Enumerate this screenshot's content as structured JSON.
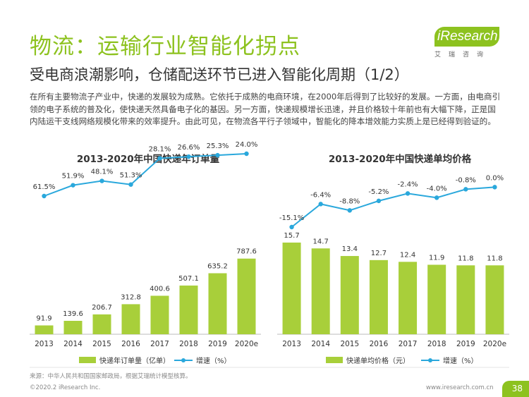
{
  "title": "物流：运输行业智能化拐点",
  "subtitle": "受电商浪潮影响，仓储配送环节已进入智能化周期（1/2）",
  "body_text": "在所有主要物流子产业中，快递的发展较为成熟。它依托于成熟的电商环境，在2000年后得到了比较好的发展。一方面，由电商引领的电子系统的普及化，使快递天然具备电子化的基因。另一方面，快递规模增长迅速，并且价格较十年前也有大幅下降，正是国内陆运干支线网络规模化带来的效率提升。由此可见，在物流各平行子领域中，智能化的降本增效能力实质上是已经得到验证的。",
  "logo": {
    "text": "iResearch",
    "sub": "艾瑞咨询"
  },
  "colors": {
    "bar": "#a8cf3a",
    "line": "#2aa8dc",
    "accent": "#8dc21f"
  },
  "chart_data": [
    {
      "type": "bar",
      "title": "2013-2020年中国快递年订单量",
      "categories": [
        "2013",
        "2014",
        "2015",
        "2016",
        "2017",
        "2018",
        "2019",
        "2020e"
      ],
      "series": [
        {
          "name": "快递年订单量（亿单）",
          "type": "bar",
          "values": [
            91.9,
            139.6,
            206.7,
            312.8,
            400.6,
            507.1,
            635.2,
            787.6
          ],
          "labels": [
            "91.9",
            "139.6",
            "206.7",
            "312.8",
            "400.6",
            "507.1",
            "635.2",
            "787.6"
          ]
        },
        {
          "name": "增速（%）",
          "type": "line",
          "values": [
            61.5,
            51.9,
            48.1,
            51.3,
            28.1,
            26.6,
            25.3,
            24.0
          ],
          "labels": [
            "61.5%",
            "51.9%",
            "48.1%",
            "51.3%",
            "28.1%",
            "26.6%",
            "25.3%",
            "24.0%"
          ]
        }
      ],
      "legend": "bottom"
    },
    {
      "type": "bar",
      "title": "2013-2020年中国快递单均价格",
      "categories": [
        "2013",
        "2014",
        "2015",
        "2016",
        "2017",
        "2018",
        "2019",
        "2020e"
      ],
      "series": [
        {
          "name": "快递单均价格（元）",
          "type": "bar",
          "values": [
            15.7,
            14.7,
            13.4,
            12.7,
            12.4,
            11.9,
            11.8,
            11.8
          ],
          "labels": [
            "15.7",
            "14.7",
            "13.4",
            "12.7",
            "12.4",
            "11.9",
            "11.8",
            "11.8"
          ]
        },
        {
          "name": "增速（%）",
          "type": "line",
          "values": [
            -15.1,
            -6.4,
            -8.8,
            -5.2,
            -2.4,
            -4.0,
            -0.8,
            0.0
          ],
          "labels": [
            "-15.1%",
            "-6.4%",
            "-8.8%",
            "-5.2%",
            "-2.4%",
            "-4.0%",
            "-0.8%",
            "0.0%"
          ]
        }
      ],
      "legend": "bottom"
    }
  ],
  "source": "来源：中华人民共和国国家邮政局，根据艾瑞统计模型核算。",
  "copyright": "©2020.2 iResearch Inc.",
  "website": "www.iresearch.com.cn",
  "page_number": "38"
}
